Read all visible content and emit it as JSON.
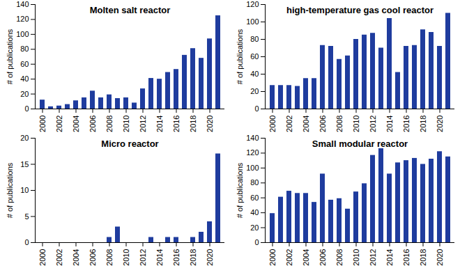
{
  "chart_data": [
    {
      "type": "bar",
      "title": "Molten salt reactor",
      "y_label": "# of publications",
      "categories": [
        "2000",
        null,
        "2002",
        null,
        "2004",
        null,
        "2006",
        null,
        "2008",
        null,
        "2010",
        null,
        "2012",
        null,
        "2014",
        null,
        "2016",
        null,
        "2018",
        null,
        "2020",
        null
      ],
      "values": [
        12,
        3,
        4,
        6,
        11,
        15,
        24,
        15,
        19,
        14,
        15,
        8,
        27,
        41,
        40,
        49,
        53,
        72,
        81,
        68,
        94,
        125
      ],
      "color": "#1f3c9e",
      "ylim": [
        0,
        140
      ],
      "yticks": [
        0,
        20,
        40,
        60,
        80,
        100,
        120,
        140
      ]
    },
    {
      "type": "bar",
      "title": "high-temperature gas cool reactor",
      "y_label": "# of publications",
      "categories": [
        "2000",
        null,
        "2002",
        null,
        "2004",
        null,
        "2006",
        null,
        "2008",
        null,
        "2010",
        null,
        "2012",
        null,
        "2014",
        null,
        "2016",
        null,
        "2018",
        null,
        "2020",
        null
      ],
      "values": [
        27,
        27,
        27,
        26,
        35,
        35,
        73,
        72,
        57,
        61,
        80,
        85,
        87,
        70,
        104,
        42,
        72,
        73,
        91,
        88,
        72,
        110
      ],
      "color": "#1f3c9e",
      "ylim": [
        0,
        120
      ],
      "yticks": [
        0,
        20,
        40,
        60,
        80,
        100,
        120
      ]
    },
    {
      "type": "bar",
      "title": "Micro reactor",
      "y_label": "# of publications",
      "categories": [
        "2000",
        null,
        "2002",
        null,
        "2004",
        null,
        "2006",
        null,
        "2008",
        null,
        "2010",
        null,
        "2012",
        null,
        "2014",
        null,
        "2016",
        null,
        "2018",
        null,
        "2020",
        null
      ],
      "values": [
        0,
        0,
        0,
        0,
        0,
        0,
        0,
        0,
        1,
        3,
        0,
        0,
        0,
        1,
        0,
        1,
        1,
        0,
        1,
        2,
        4,
        17
      ],
      "color": "#1f3c9e",
      "ylim": [
        0,
        20
      ],
      "yticks": [
        0,
        5,
        10,
        15,
        20
      ]
    },
    {
      "type": "bar",
      "title": "Small modular reactor",
      "y_label": "# of publications",
      "categories": [
        "2000",
        null,
        "2002",
        null,
        "2004",
        null,
        "2006",
        null,
        "2008",
        null,
        "2010",
        null,
        "2012",
        null,
        "2014",
        null,
        "2016",
        null,
        "2018",
        null,
        "2020",
        null
      ],
      "values": [
        39,
        61,
        69,
        66,
        66,
        54,
        92,
        57,
        59,
        45,
        68,
        79,
        117,
        126,
        92,
        107,
        110,
        113,
        105,
        112,
        122,
        115
      ],
      "color": "#1f3c9e",
      "ylim": [
        0,
        140
      ],
      "yticks": [
        0,
        20,
        40,
        60,
        80,
        100,
        120,
        140
      ]
    }
  ]
}
